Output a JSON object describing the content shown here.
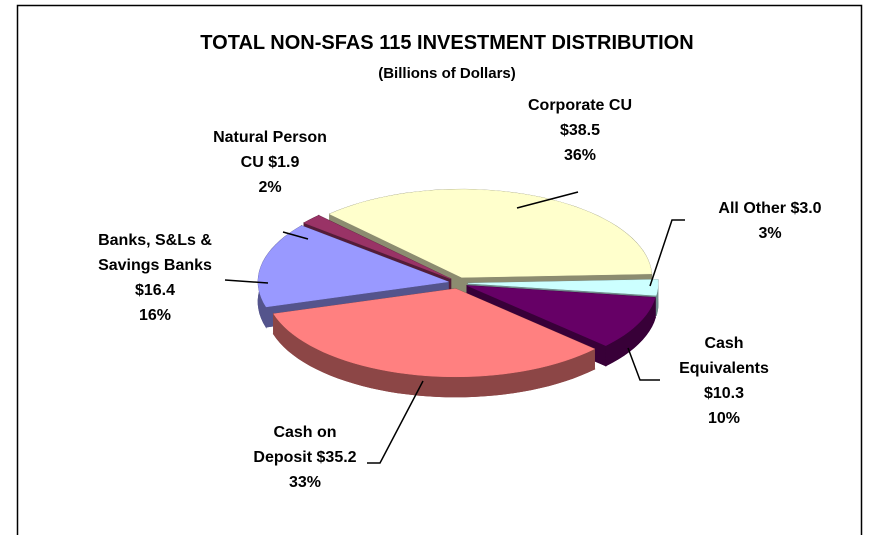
{
  "chart_data": {
    "type": "pie",
    "title": "TOTAL NON-SFAS 115 INVESTMENT DISTRIBUTION",
    "subtitle": "(Billions of Dollars)",
    "categories": [
      "Corporate CU",
      "All Other",
      "Cash Equivalents",
      "Cash on Deposit",
      "Banks, S&Ls & Savings Banks",
      "Natural Person CU"
    ],
    "values": [
      38.5,
      3.0,
      10.3,
      35.2,
      16.4,
      1.9
    ],
    "value_labels": [
      "$38.5",
      "$3.0",
      "$10.3",
      "$35.2",
      "$16.4",
      "$1.9"
    ],
    "shares": [
      36,
      3,
      10,
      33,
      16,
      2
    ],
    "share_labels": [
      "36%",
      "3%",
      "10%",
      "33%",
      "16%",
      "2%"
    ],
    "colors": [
      "#FFFFCC",
      "#CCFFFF",
      "#660066",
      "#FF8080",
      "#9999FF",
      "#993366"
    ]
  }
}
